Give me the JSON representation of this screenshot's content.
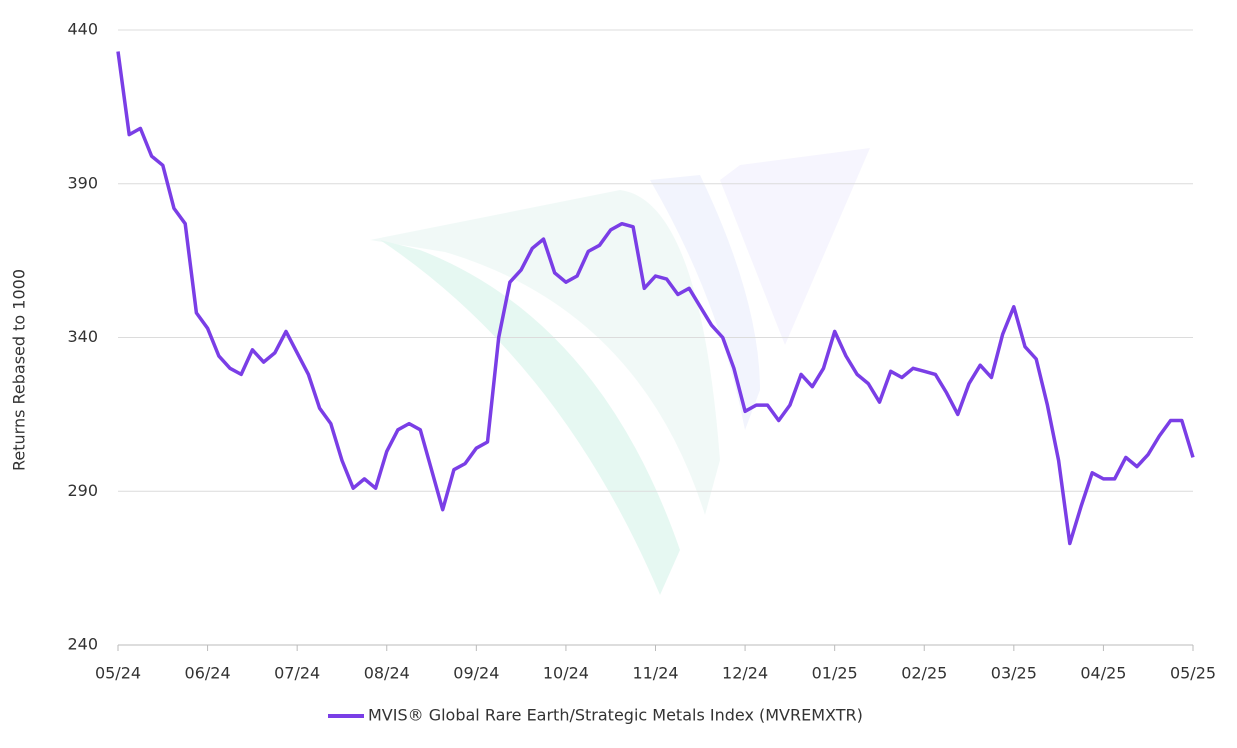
{
  "chart_data": {
    "type": "line",
    "y_label": "Returns Rebased to 1000",
    "categories": [
      "05/24",
      null,
      null,
      null,
      null,
      null,
      null,
      null,
      "06/24",
      null,
      null,
      null,
      null,
      null,
      null,
      null,
      "07/24",
      null,
      null,
      null,
      null,
      null,
      null,
      null,
      "08/24",
      null,
      null,
      null,
      null,
      null,
      null,
      null,
      "09/24",
      null,
      null,
      null,
      null,
      null,
      null,
      null,
      "10/24",
      null,
      null,
      null,
      null,
      null,
      null,
      null,
      "11/24",
      null,
      null,
      null,
      null,
      null,
      null,
      null,
      "12/24",
      null,
      null,
      null,
      null,
      null,
      null,
      null,
      "01/25",
      null,
      null,
      null,
      null,
      null,
      null,
      null,
      "02/25",
      null,
      null,
      null,
      null,
      null,
      null,
      null,
      "03/25",
      null,
      null,
      null,
      null,
      null,
      null,
      null,
      "04/25",
      null,
      null,
      null,
      null,
      null,
      null,
      null,
      "05/25"
    ],
    "series": [
      {
        "name": "MVIS® Global Rare Earth/Strategic Metals Index (MVREMXTR)",
        "color": "#7a3ee6",
        "values": [
          433,
          406,
          408,
          399,
          396,
          382,
          377,
          348,
          343,
          334,
          330,
          328,
          336,
          332,
          335,
          342,
          335,
          328,
          317,
          312,
          300,
          291,
          294,
          291,
          303,
          310,
          312,
          310,
          297,
          284,
          297,
          299,
          304,
          306,
          340,
          358,
          362,
          369,
          372,
          361,
          358,
          360,
          368,
          370,
          375,
          377,
          376,
          356,
          360,
          359,
          354,
          356,
          350,
          344,
          340,
          330,
          316,
          318,
          318,
          313,
          318,
          328,
          324,
          330,
          342,
          334,
          328,
          325,
          319,
          329,
          327,
          330,
          329,
          328,
          322,
          315,
          325,
          331,
          327,
          341,
          350,
          337,
          333,
          318,
          300,
          273,
          285,
          296,
          294,
          294,
          301,
          298,
          302,
          308,
          313,
          313,
          301
        ]
      }
    ],
    "ylim": [
      240,
      440
    ],
    "yticks": [
      240,
      290,
      340,
      390,
      440
    ],
    "grid": true,
    "legend": "bottom"
  }
}
